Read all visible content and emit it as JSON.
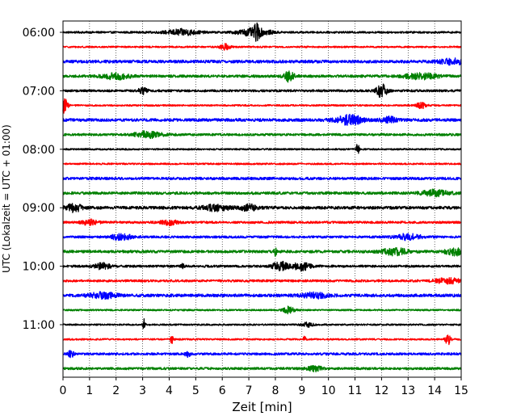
{
  "chart_data": {
    "type": "line",
    "title": "",
    "xlabel": "Zeit  [min]",
    "ylabel": "UTC (Lokalzeit = UTC + 01:00)",
    "xlim": [
      0,
      15
    ],
    "x_ticks": [
      "0",
      "1",
      "2",
      "3",
      "4",
      "5",
      "6",
      "7",
      "8",
      "9",
      "10",
      "11",
      "12",
      "13",
      "14",
      "15"
    ],
    "y_ticks": [
      "06:00",
      "07:00",
      "08:00",
      "09:00",
      "10:00",
      "11:00"
    ],
    "traces_per_hour": 4,
    "trace_minutes": 15,
    "grid": {
      "vertical": true,
      "style": "dotted"
    },
    "colors_cycle": [
      "#000000",
      "#ff0000",
      "#0000ff",
      "#008000"
    ],
    "series": [
      {
        "start": "06:00",
        "color": "#000000",
        "noise": 0.12,
        "events": [
          {
            "t": 4.5,
            "a": 0.35,
            "w": 0.6
          },
          {
            "t": 7.2,
            "a": 0.45,
            "w": 0.6
          },
          {
            "t": 7.3,
            "a": 0.7,
            "w": 0.1
          }
        ]
      },
      {
        "start": "06:15",
        "color": "#ff0000",
        "noise": 0.1,
        "events": [
          {
            "t": 6.1,
            "a": 0.35,
            "w": 0.2
          }
        ]
      },
      {
        "start": "06:30",
        "color": "#0000ff",
        "noise": 0.18,
        "events": [
          {
            "t": 14.7,
            "a": 0.3,
            "w": 0.5
          }
        ]
      },
      {
        "start": "06:45",
        "color": "#008000",
        "noise": 0.16,
        "events": [
          {
            "t": 2.0,
            "a": 0.35,
            "w": 0.5
          },
          {
            "t": 8.5,
            "a": 0.6,
            "w": 0.2
          },
          {
            "t": 13.5,
            "a": 0.35,
            "w": 0.6
          }
        ]
      },
      {
        "start": "07:00",
        "color": "#000000",
        "noise": 0.14,
        "events": [
          {
            "t": 3.0,
            "a": 0.35,
            "w": 0.2
          },
          {
            "t": 12.0,
            "a": 0.8,
            "w": 0.2
          }
        ]
      },
      {
        "start": "07:15",
        "color": "#ff0000",
        "noise": 0.1,
        "events": [
          {
            "t": 0.05,
            "a": 0.9,
            "w": 0.12
          },
          {
            "t": 13.5,
            "a": 0.35,
            "w": 0.2
          }
        ]
      },
      {
        "start": "07:30",
        "color": "#0000ff",
        "noise": 0.18,
        "events": [
          {
            "t": 10.8,
            "a": 0.55,
            "w": 0.5
          },
          {
            "t": 12.3,
            "a": 0.35,
            "w": 0.3
          }
        ]
      },
      {
        "start": "07:45",
        "color": "#008000",
        "noise": 0.14,
        "events": [
          {
            "t": 3.2,
            "a": 0.4,
            "w": 0.5
          }
        ]
      },
      {
        "start": "08:00",
        "color": "#000000",
        "noise": 0.1,
        "events": [
          {
            "t": 11.1,
            "a": 0.8,
            "w": 0.05
          }
        ]
      },
      {
        "start": "08:15",
        "color": "#ff0000",
        "noise": 0.1,
        "events": []
      },
      {
        "start": "08:30",
        "color": "#0000ff",
        "noise": 0.16,
        "events": []
      },
      {
        "start": "08:45",
        "color": "#008000",
        "noise": 0.16,
        "events": [
          {
            "t": 14.0,
            "a": 0.35,
            "w": 0.5
          }
        ]
      },
      {
        "start": "09:00",
        "color": "#000000",
        "noise": 0.18,
        "events": [
          {
            "t": 0.4,
            "a": 0.45,
            "w": 0.3
          },
          {
            "t": 5.8,
            "a": 0.35,
            "w": 0.5
          },
          {
            "t": 7.0,
            "a": 0.35,
            "w": 0.3
          }
        ]
      },
      {
        "start": "09:15",
        "color": "#ff0000",
        "noise": 0.14,
        "events": [
          {
            "t": 1.0,
            "a": 0.3,
            "w": 0.3
          },
          {
            "t": 4.0,
            "a": 0.3,
            "w": 0.3
          }
        ]
      },
      {
        "start": "09:30",
        "color": "#0000ff",
        "noise": 0.14,
        "events": [
          {
            "t": 2.2,
            "a": 0.35,
            "w": 0.4
          },
          {
            "t": 13.0,
            "a": 0.35,
            "w": 0.5
          }
        ]
      },
      {
        "start": "09:45",
        "color": "#008000",
        "noise": 0.16,
        "events": [
          {
            "t": 8.0,
            "a": 0.45,
            "w": 0.05
          },
          {
            "t": 12.5,
            "a": 0.4,
            "w": 0.5
          },
          {
            "t": 14.8,
            "a": 0.4,
            "w": 0.4
          }
        ]
      },
      {
        "start": "10:00",
        "color": "#000000",
        "noise": 0.14,
        "events": [
          {
            "t": 1.5,
            "a": 0.35,
            "w": 0.3
          },
          {
            "t": 4.5,
            "a": 0.35,
            "w": 0.05
          },
          {
            "t": 8.2,
            "a": 0.55,
            "w": 0.3
          },
          {
            "t": 9.0,
            "a": 0.55,
            "w": 0.3
          }
        ]
      },
      {
        "start": "10:15",
        "color": "#ff0000",
        "noise": 0.14,
        "events": [
          {
            "t": 14.5,
            "a": 0.3,
            "w": 0.5
          }
        ]
      },
      {
        "start": "10:30",
        "color": "#0000ff",
        "noise": 0.18,
        "events": [
          {
            "t": 1.5,
            "a": 0.35,
            "w": 0.5
          },
          {
            "t": 9.5,
            "a": 0.3,
            "w": 0.5
          }
        ]
      },
      {
        "start": "10:45",
        "color": "#008000",
        "noise": 0.1,
        "events": [
          {
            "t": 8.5,
            "a": 0.4,
            "w": 0.2
          }
        ]
      },
      {
        "start": "11:00",
        "color": "#000000",
        "noise": 0.1,
        "events": [
          {
            "t": 3.05,
            "a": 0.8,
            "w": 0.05
          },
          {
            "t": 9.2,
            "a": 0.3,
            "w": 0.2
          }
        ]
      },
      {
        "start": "11:15",
        "color": "#ff0000",
        "noise": 0.1,
        "events": [
          {
            "t": 4.1,
            "a": 0.5,
            "w": 0.05
          },
          {
            "t": 9.1,
            "a": 0.4,
            "w": 0.05
          },
          {
            "t": 14.5,
            "a": 0.7,
            "w": 0.1
          }
        ]
      },
      {
        "start": "11:30",
        "color": "#0000ff",
        "noise": 0.14,
        "events": [
          {
            "t": 0.3,
            "a": 0.45,
            "w": 0.1
          },
          {
            "t": 4.7,
            "a": 0.3,
            "w": 0.1
          }
        ]
      },
      {
        "start": "11:45",
        "color": "#008000",
        "noise": 0.14,
        "events": [
          {
            "t": 9.5,
            "a": 0.3,
            "w": 0.3
          }
        ]
      }
    ]
  }
}
